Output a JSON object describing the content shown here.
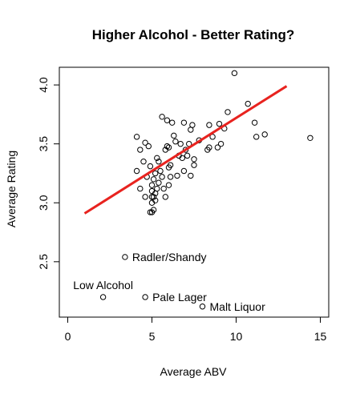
{
  "chart_data": {
    "type": "scatter",
    "title": "Higher Alcohol - Better Rating?",
    "xlabel": "Average ABV",
    "ylabel": "Average Rating",
    "xlim": [
      -0.5,
      15.5
    ],
    "ylim": [
      2.03,
      4.15
    ],
    "xticks": [
      0,
      5,
      10,
      15
    ],
    "yticks": [
      2.5,
      3.0,
      3.5,
      4.0
    ],
    "xtick_labels": [
      "0",
      "5",
      "10",
      "15"
    ],
    "ytick_labels": [
      "2.5",
      "3.0",
      "3.5",
      "4.0"
    ],
    "point_color": "#000000",
    "trend_color": "#e8231f",
    "trend_line": {
      "x": [
        1.0,
        13.0
      ],
      "y": [
        2.91,
        3.99
      ]
    },
    "points": [
      [
        4.1,
        3.56
      ],
      [
        4.3,
        3.45
      ],
      [
        4.5,
        3.35
      ],
      [
        4.6,
        3.51
      ],
      [
        4.8,
        3.48
      ],
      [
        4.1,
        3.27
      ],
      [
        4.3,
        3.12
      ],
      [
        4.6,
        3.05
      ],
      [
        4.7,
        3.22
      ],
      [
        4.9,
        3.31
      ],
      [
        5.0,
        3.15
      ],
      [
        5.0,
        3.1
      ],
      [
        5.0,
        3.05
      ],
      [
        5.0,
        3.0
      ],
      [
        5.0,
        2.92
      ],
      [
        4.9,
        2.92
      ],
      [
        5.1,
        2.94
      ],
      [
        5.1,
        3.05
      ],
      [
        5.1,
        3.2
      ],
      [
        5.2,
        3.25
      ],
      [
        5.2,
        3.02
      ],
      [
        5.2,
        3.08
      ],
      [
        5.3,
        3.12
      ],
      [
        5.3,
        3.38
      ],
      [
        5.4,
        3.35
      ],
      [
        5.4,
        3.17
      ],
      [
        5.5,
        3.27
      ],
      [
        5.6,
        3.22
      ],
      [
        5.6,
        3.73
      ],
      [
        5.7,
        3.12
      ],
      [
        5.8,
        3.05
      ],
      [
        5.8,
        3.45
      ],
      [
        5.9,
        3.48
      ],
      [
        5.9,
        3.7
      ],
      [
        6.0,
        3.47
      ],
      [
        6.0,
        3.3
      ],
      [
        6.0,
        3.15
      ],
      [
        6.1,
        3.32
      ],
      [
        6.1,
        3.22
      ],
      [
        6.2,
        3.68
      ],
      [
        6.3,
        3.57
      ],
      [
        6.4,
        3.52
      ],
      [
        6.5,
        3.23
      ],
      [
        6.6,
        3.4
      ],
      [
        6.7,
        3.5
      ],
      [
        6.8,
        3.38
      ],
      [
        6.9,
        3.68
      ],
      [
        6.9,
        3.27
      ],
      [
        7.0,
        3.45
      ],
      [
        7.1,
        3.4
      ],
      [
        7.2,
        3.5
      ],
      [
        7.3,
        3.23
      ],
      [
        7.3,
        3.62
      ],
      [
        7.4,
        3.66
      ],
      [
        7.5,
        3.37
      ],
      [
        7.5,
        3.32
      ],
      [
        7.8,
        3.53
      ],
      [
        8.3,
        3.45
      ],
      [
        8.4,
        3.47
      ],
      [
        8.4,
        3.66
      ],
      [
        8.6,
        3.56
      ],
      [
        8.9,
        3.47
      ],
      [
        9.0,
        3.67
      ],
      [
        9.1,
        3.5
      ],
      [
        9.3,
        3.63
      ],
      [
        9.5,
        3.77
      ],
      [
        9.9,
        4.1
      ],
      [
        10.7,
        3.84
      ],
      [
        11.1,
        3.68
      ],
      [
        11.2,
        3.56
      ],
      [
        11.7,
        3.58
      ],
      [
        14.4,
        3.55
      ],
      [
        3.4,
        2.54
      ],
      [
        2.1,
        2.2
      ],
      [
        4.6,
        2.2
      ],
      [
        8.0,
        2.12
      ]
    ],
    "annotations": [
      {
        "text": "Radler/Shandy",
        "x": 3.4,
        "y": 2.54,
        "anchor": "right"
      },
      {
        "text": "Low Alcohol",
        "x": 2.1,
        "y": 2.2,
        "anchor": "above"
      },
      {
        "text": "Pale Lager",
        "x": 4.6,
        "y": 2.2,
        "anchor": "right"
      },
      {
        "text": "Malt Liquor",
        "x": 8.0,
        "y": 2.12,
        "anchor": "right"
      }
    ]
  }
}
